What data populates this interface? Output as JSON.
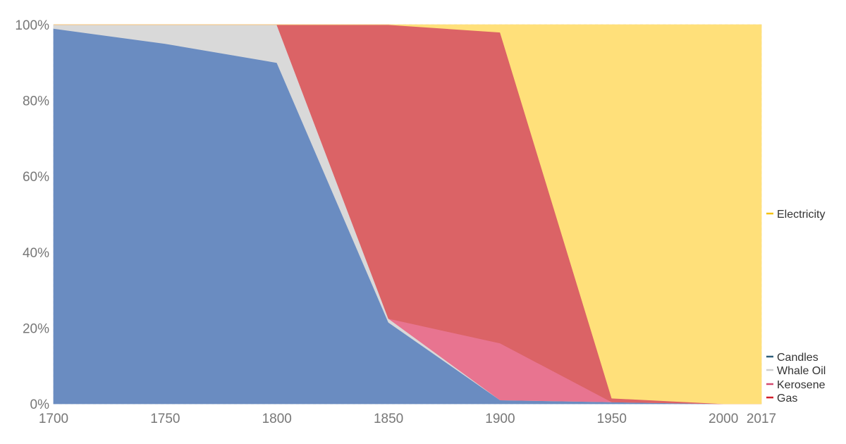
{
  "chart_data": {
    "type": "area",
    "stacked": true,
    "normalized": true,
    "x": [
      1700,
      1750,
      1800,
      1850,
      1900,
      1950,
      2000,
      2017
    ],
    "x_ticks": [
      "1700",
      "1750",
      "1800",
      "1850",
      "1900",
      "1950",
      "2000",
      "2017"
    ],
    "y_ticks": [
      "0%",
      "20%",
      "40%",
      "60%",
      "80%",
      "100%"
    ],
    "ylim": [
      0,
      100
    ],
    "grid": true,
    "legend_position": "right",
    "series": [
      {
        "name": "Candles",
        "color": "#6a8cc1",
        "values": [
          99,
          95,
          90,
          21.5,
          1,
          0.5,
          0,
          0
        ]
      },
      {
        "name": "Whale Oil",
        "color": "#d9d9d9",
        "values": [
          1,
          5,
          10,
          1,
          0,
          0,
          0,
          0
        ]
      },
      {
        "name": "Kerosene",
        "color": "#e87490",
        "values": [
          0,
          0,
          0,
          0,
          15,
          0,
          0,
          0
        ]
      },
      {
        "name": "Gas",
        "color": "#db6366",
        "values": [
          0,
          0,
          0,
          77.5,
          82,
          1,
          0,
          0
        ]
      },
      {
        "name": "Electricity",
        "color": "#ffe07a",
        "values": [
          0,
          0,
          0,
          0,
          2,
          98.5,
          100,
          100
        ]
      }
    ],
    "legend_marker_colors": {
      "Candles": "#2f5f7a",
      "Whale Oil": "#cfcfcf",
      "Kerosene": "#d44b70",
      "Gas": "#d11f2a",
      "Electricity": "#f5c211"
    }
  }
}
